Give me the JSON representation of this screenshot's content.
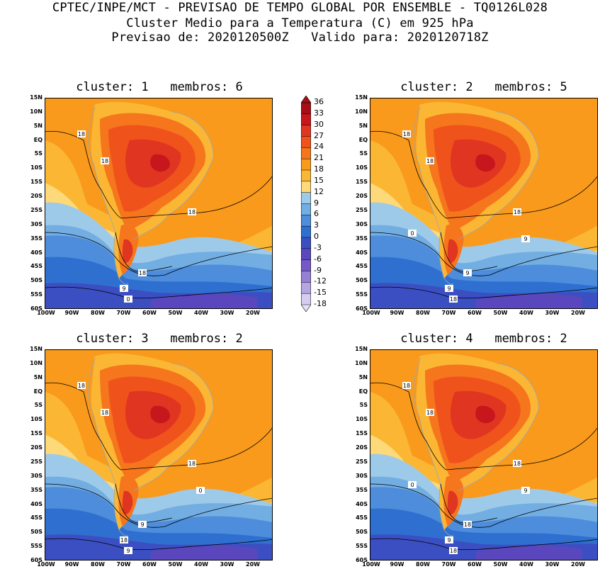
{
  "title": {
    "line1": "CPTEC/INPE/MCT - PREVISAO DE TEMPO GLOBAL POR ENSEMBLE - TQ0126L028",
    "line2": "Cluster Medio para a Temperatura (C) em 925 hPa",
    "line3": "Previsao de: 2020120500Z   Valido para: 2020120718Z"
  },
  "panels": [
    {
      "cluster_label": "cluster:",
      "cluster": "1",
      "members_label": "membros:",
      "members": "6",
      "contour_labels": [
        "18",
        "18",
        "18",
        "18",
        "9",
        "0"
      ]
    },
    {
      "cluster_label": "cluster:",
      "cluster": "2",
      "members_label": "membros:",
      "members": "5",
      "contour_labels": [
        "18",
        "18",
        "18",
        "9",
        "9",
        "18",
        "9",
        "0"
      ]
    },
    {
      "cluster_label": "cluster:",
      "cluster": "3",
      "members_label": "membros:",
      "members": "2",
      "contour_labels": [
        "18",
        "18",
        "18",
        "9",
        "18",
        "9",
        "0"
      ]
    },
    {
      "cluster_label": "cluster:",
      "cluster": "4",
      "members_label": "membros:",
      "members": "2",
      "contour_labels": [
        "18",
        "18",
        "18",
        "18",
        "9",
        "18",
        "9",
        "0"
      ]
    }
  ],
  "lat_labels": [
    "15N",
    "10N",
    "5N",
    "EQ",
    "5S",
    "10S",
    "15S",
    "20S",
    "25S",
    "30S",
    "35S",
    "40S",
    "45S",
    "50S",
    "55S",
    "60S"
  ],
  "lon_labels": [
    "100W",
    "90W",
    "80W",
    "70W",
    "60W",
    "50W",
    "40W",
    "30W",
    "20W"
  ],
  "colorbar": {
    "labels": [
      "36",
      "33",
      "30",
      "27",
      "24",
      "21",
      "18",
      "15",
      "12",
      "9",
      "6",
      "3",
      "0",
      "-3",
      "-6",
      "-9",
      "-12",
      "-15",
      "-18"
    ],
    "colors": [
      "#a50f15",
      "#c8161d",
      "#e03520",
      "#f0521c",
      "#f5761c",
      "#f99a1c",
      "#fbb734",
      "#fdd97a",
      "#9ecae9",
      "#73aee3",
      "#4d8ddb",
      "#2f6fd0",
      "#3b4fc2",
      "#5a47be",
      "#7659c6",
      "#9580d6",
      "#b3a6e3",
      "#d6ccf1"
    ],
    "accent_top": "#a50f15",
    "accent_bottom": "#e6e0f7"
  },
  "palette": {
    "deep_red": "#c8161d",
    "red": "#e03520",
    "red_orange": "#f0521c",
    "orange": "#f5761c",
    "light_orange": "#f99a1c",
    "gold": "#fbb734",
    "yellow": "#fdd97a",
    "light_blue": "#9ecae9",
    "blue": "#73aee3",
    "mid_blue": "#4d8ddb",
    "dark_blue": "#2f6fd0",
    "indigo": "#3b4fc2",
    "violet": "#5a47be"
  }
}
